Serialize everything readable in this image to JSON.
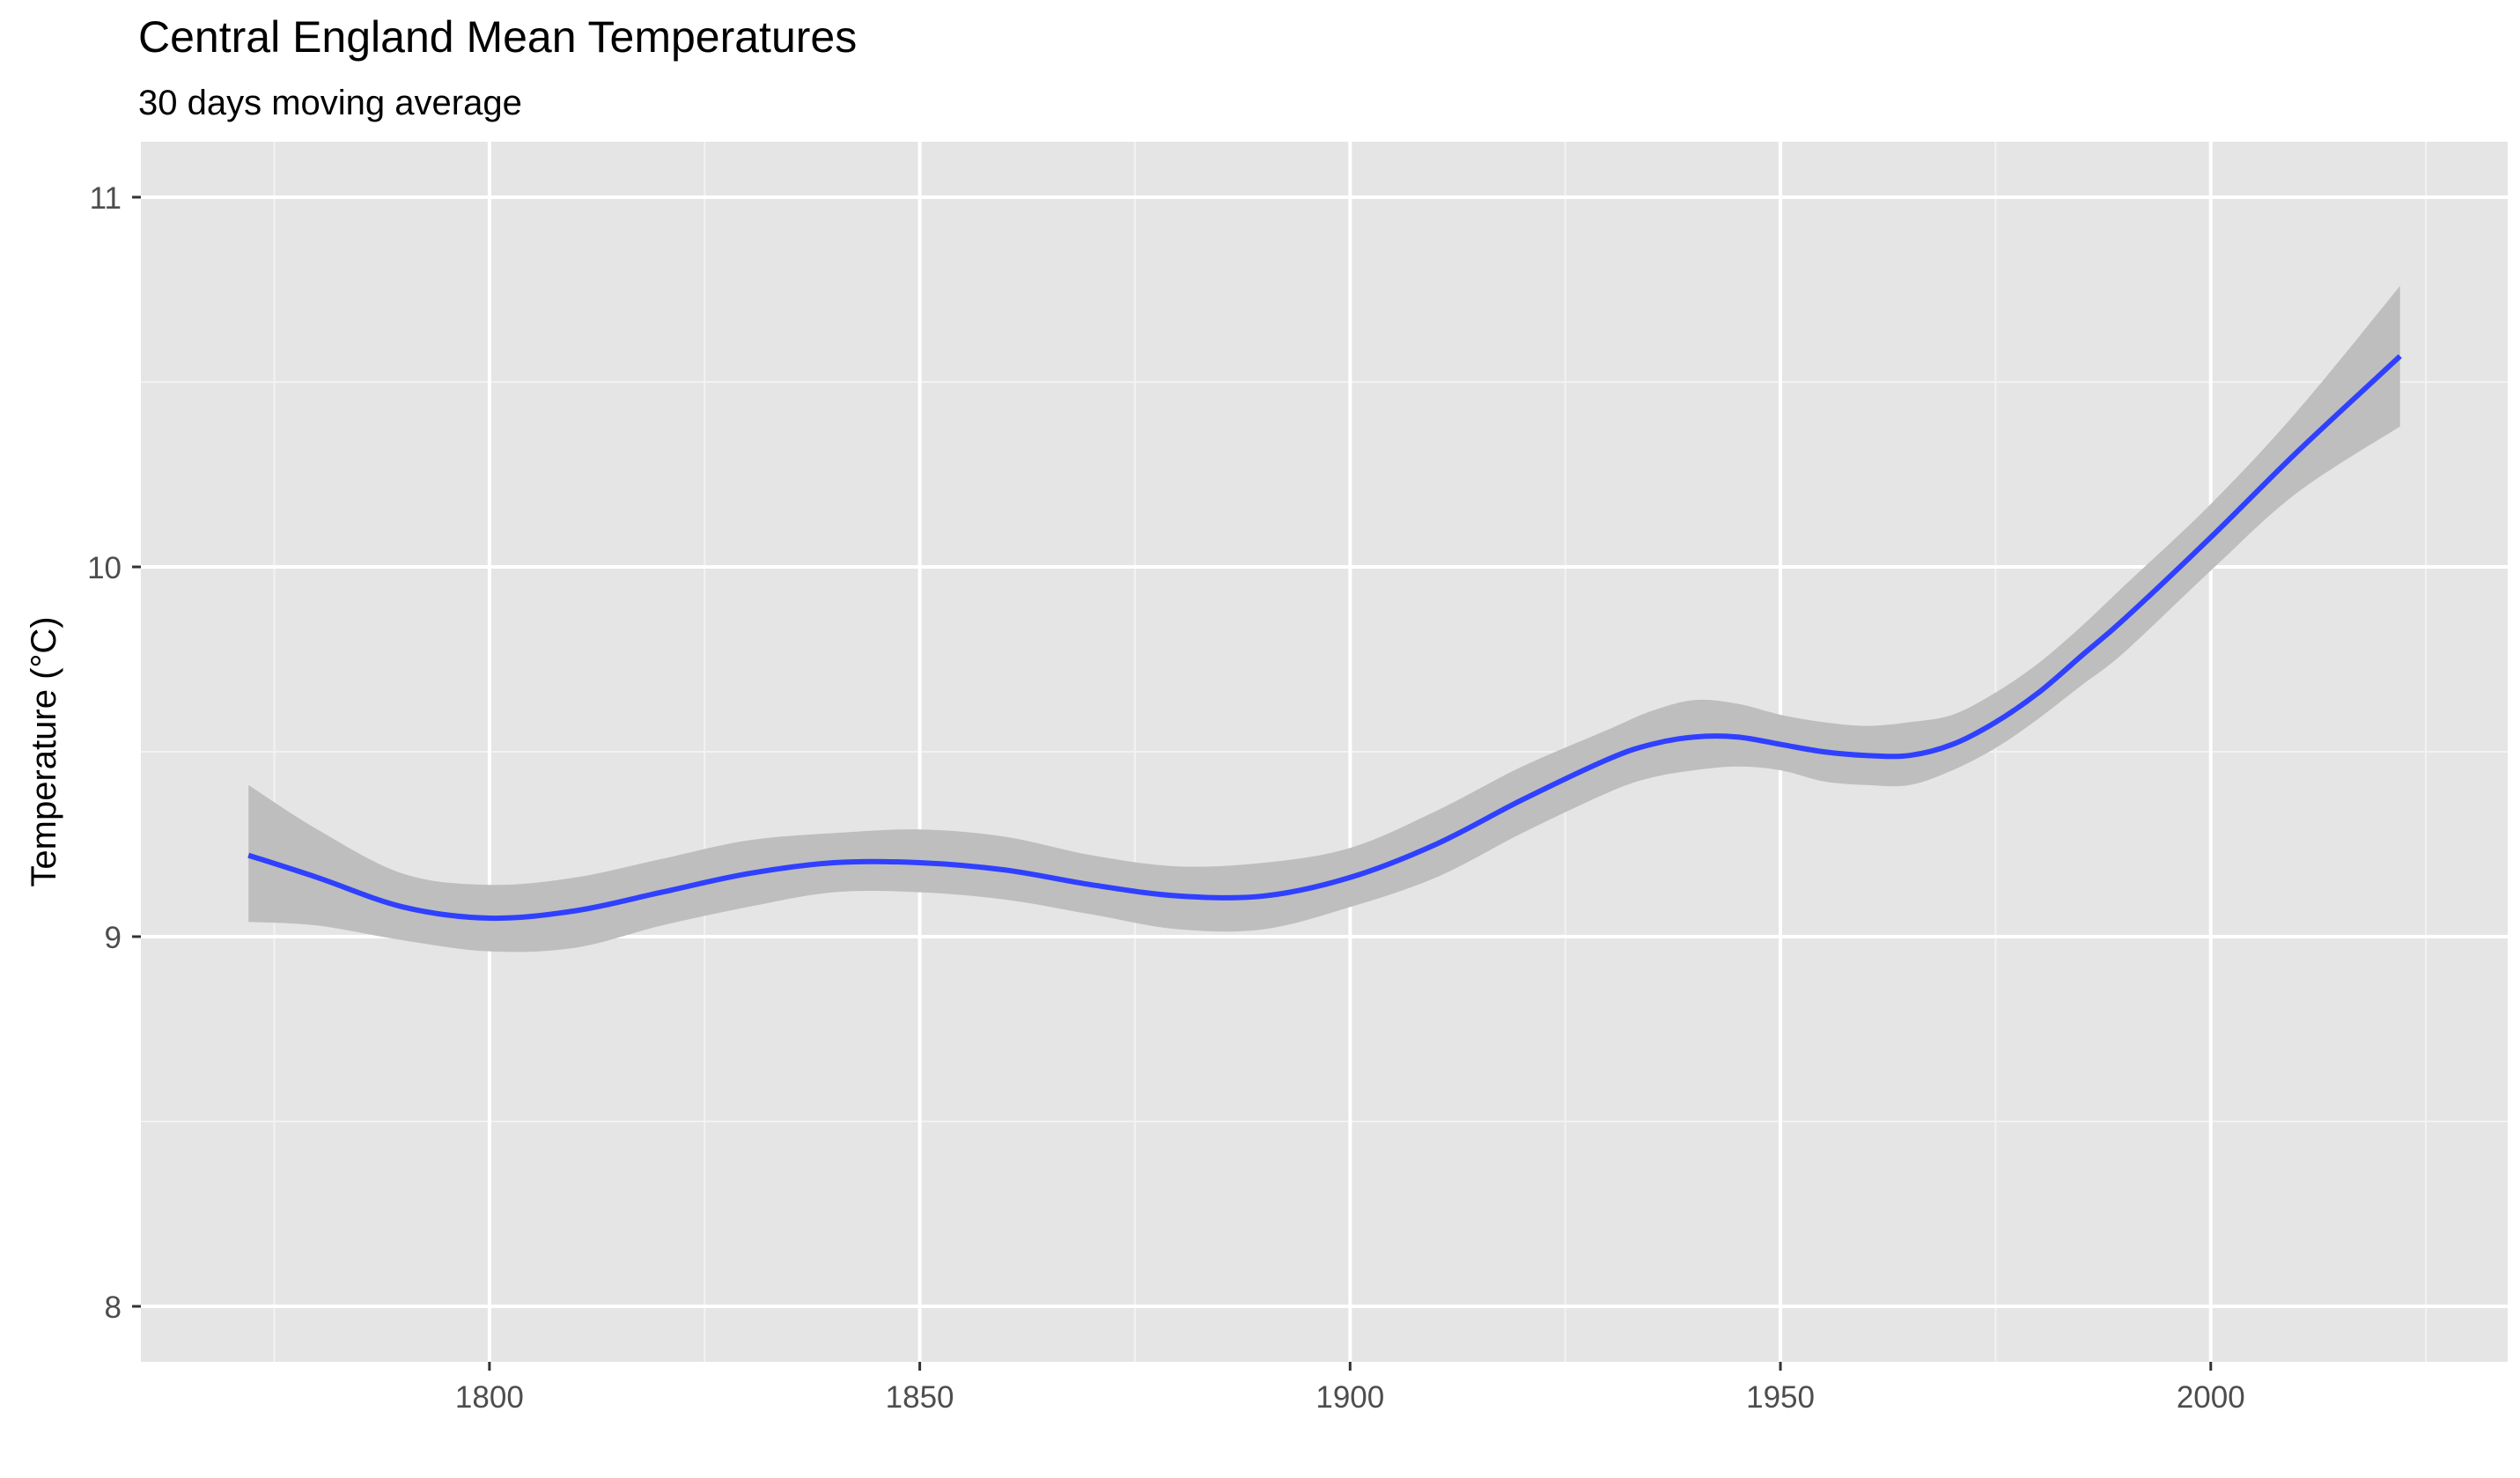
{
  "chart_data": {
    "type": "line",
    "title": "Central England Mean Temperatures",
    "subtitle": "30 days moving average",
    "xlabel": "",
    "ylabel": "Temperature (°C)",
    "xlim": [
      1759.5,
      2034.5
    ],
    "ylim": [
      7.85,
      11.15
    ],
    "x_ticks": [
      1800,
      1850,
      1900,
      1950,
      2000
    ],
    "x_tick_labels": [
      "1800",
      "1850",
      "1900",
      "1950",
      "2000"
    ],
    "y_ticks": [
      8,
      9,
      10,
      11
    ],
    "y_tick_labels": [
      "8",
      "9",
      "10",
      "11"
    ],
    "grid": true,
    "legend": "none",
    "colors": {
      "panel_background": "#e5e5e5",
      "grid_major": "#ffffff",
      "grid_minor": "#f2f2f2",
      "line": "#3040ff",
      "confidence_band": "#bebebe",
      "tick_text": "#4d4d4d",
      "text": "#000000"
    },
    "series": [
      {
        "x": [
          1772,
          1780,
          1790,
          1800,
          1810,
          1820,
          1830,
          1840,
          1850,
          1860,
          1870,
          1880,
          1890,
          1900,
          1910,
          1920,
          1930,
          1935,
          1940,
          1945,
          1950,
          1955,
          1960,
          1965,
          1970,
          1975,
          1980,
          1985,
          1990,
          2000,
          2010,
          2022
        ],
        "values": [
          9.22,
          9.16,
          9.08,
          9.05,
          9.07,
          9.12,
          9.17,
          9.2,
          9.2,
          9.18,
          9.14,
          9.11,
          9.11,
          9.16,
          9.25,
          9.37,
          9.48,
          9.52,
          9.54,
          9.54,
          9.52,
          9.5,
          9.49,
          9.49,
          9.52,
          9.58,
          9.66,
          9.76,
          9.86,
          10.08,
          10.31,
          10.57
        ],
        "ci_low": [
          9.04,
          9.03,
          8.99,
          8.96,
          8.97,
          9.03,
          9.08,
          9.12,
          9.12,
          9.1,
          9.06,
          9.02,
          9.02,
          9.08,
          9.16,
          9.28,
          9.39,
          9.43,
          9.45,
          9.46,
          9.45,
          9.42,
          9.41,
          9.41,
          9.45,
          9.51,
          9.59,
          9.68,
          9.77,
          9.99,
          10.2,
          10.38
        ],
        "ci_high": [
          9.41,
          9.29,
          9.17,
          9.14,
          9.16,
          9.21,
          9.26,
          9.28,
          9.29,
          9.27,
          9.22,
          9.19,
          9.2,
          9.24,
          9.34,
          9.46,
          9.56,
          9.61,
          9.64,
          9.63,
          9.6,
          9.58,
          9.57,
          9.58,
          9.6,
          9.66,
          9.74,
          9.84,
          9.95,
          10.17,
          10.42,
          10.76
        ]
      }
    ]
  }
}
